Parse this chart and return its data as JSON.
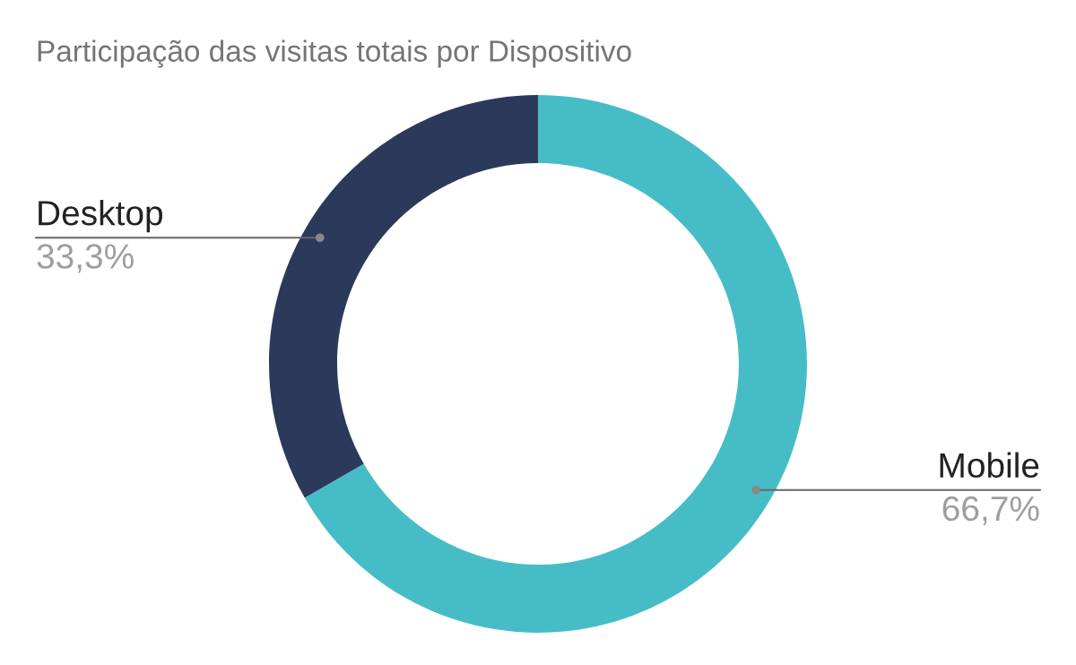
{
  "chart_data": {
    "type": "donut",
    "title": "Participação das visitas totais por Dispositivo",
    "categories": [
      "Mobile",
      "Desktop"
    ],
    "values": [
      66.7,
      33.3
    ],
    "value_labels": [
      "66,7%",
      "33,3%"
    ],
    "colors": [
      "#46bdc6",
      "#2b3a5a"
    ]
  }
}
